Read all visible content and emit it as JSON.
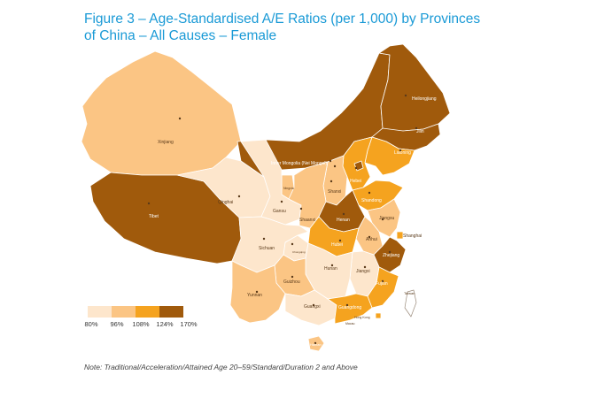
{
  "title": "Figure 3 – Age-Standardised A/E Ratios (per 1,000) by Provinces of China – All Causes – Female",
  "note": "Note: Traditional/Acceleration/Attained Age 20–59/Standard/Duration 2 and Above",
  "colors": {
    "band1": "#fde6cc",
    "band2": "#fbc584",
    "band3": "#f5a31f",
    "band4": "#a05a0c",
    "border": "#ffffff",
    "title": "#1a9ad6"
  },
  "legend": {
    "labels": [
      "80%",
      "96%",
      "108%",
      "124%",
      "170%"
    ]
  },
  "provinces": {
    "heilongjiang": "Heilongjiang",
    "jilin": "Jilin",
    "liaoning": "Liaoning",
    "inner_mongolia": "Inner Mongolia (Nei Mongol)",
    "xinjiang": "Xinjiang",
    "tibet": "Tibet",
    "qinghai": "Qinghai",
    "gansu": "Gansu",
    "ningxia": "Ningxia",
    "shaanxi": "Shaanxi",
    "shanxi": "Shanxi",
    "hebei": "Hebei",
    "shandong": "Shandong",
    "henan": "Henan",
    "jiangsu": "Jiangsu",
    "anhui": "Anhui",
    "shanghai": "Shanghai",
    "hubei": "Hubei",
    "sichuan": "Sichuan",
    "chongqing": "Chongqing",
    "zhejiang": "Zhejiang",
    "hunan": "Hunan",
    "jiangxi": "Jiangxi",
    "guizhou": "Guizhou",
    "yunnan": "Yunnan",
    "fujian": "Fujian",
    "taiwan": "Taiwan",
    "guangxi": "Guangxi",
    "guangdong": "Guangdong",
    "hong_kong": "Hong Kong",
    "macau": "Macau",
    "hainan": "Hainan"
  }
}
